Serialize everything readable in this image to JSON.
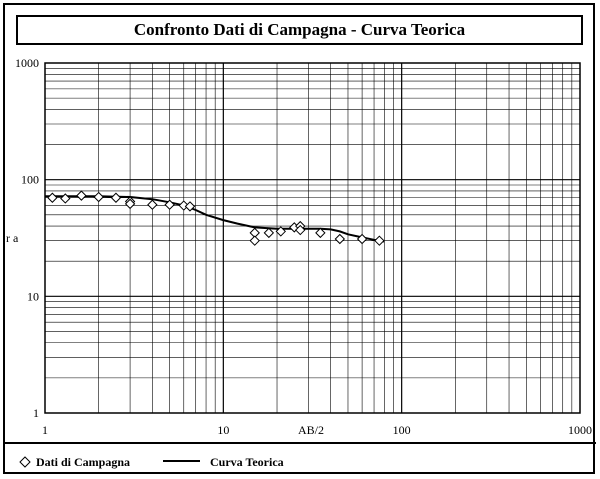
{
  "chart_data": {
    "type": "scatter",
    "title": "Confronto Dati di Campagna - Curva Teorica",
    "xlabel": "AB/2",
    "ylabel": "r a",
    "xscale": "log",
    "yscale": "log",
    "xlim": [
      1,
      1000
    ],
    "ylim": [
      1,
      1000
    ],
    "x_tick_labels": [
      "1",
      "10",
      "100",
      "1000"
    ],
    "y_tick_labels": [
      "1",
      "10",
      "100",
      "1000"
    ],
    "grid": true,
    "legend_position": "bottom",
    "series": [
      {
        "name": "Dati di Campagna",
        "marker": "diamond",
        "x": [
          1.1,
          1.3,
          1.6,
          2.0,
          2.5,
          3.0,
          3.0,
          4.0,
          5.0,
          6.0,
          6.5,
          15,
          15,
          18,
          21,
          25,
          27,
          27,
          35,
          45,
          60,
          75
        ],
        "y": [
          70,
          69,
          73,
          71,
          70,
          65,
          62,
          61,
          61,
          60,
          59,
          35,
          30,
          35,
          36,
          39,
          40,
          37,
          35,
          31,
          31,
          30
        ]
      },
      {
        "name": "Curva Teorica",
        "line": "solid",
        "x": [
          1.0,
          1.5,
          2.0,
          3.0,
          4.0,
          5.0,
          6.0,
          7.0,
          8.0,
          10.0,
          12.0,
          15.0,
          20.0,
          25.0,
          30.0,
          35.0,
          40.0,
          45.0,
          50.0,
          60.0,
          70.0,
          80.0
        ],
        "y": [
          72,
          72,
          72,
          71,
          68,
          64,
          60,
          55,
          50,
          45,
          42,
          39,
          38,
          38,
          38,
          38,
          37.5,
          36,
          34,
          32,
          30.5,
          29.5
        ]
      }
    ]
  },
  "colors": {
    "ink": "#000000",
    "grid": "#000000",
    "background": "#ffffff"
  }
}
